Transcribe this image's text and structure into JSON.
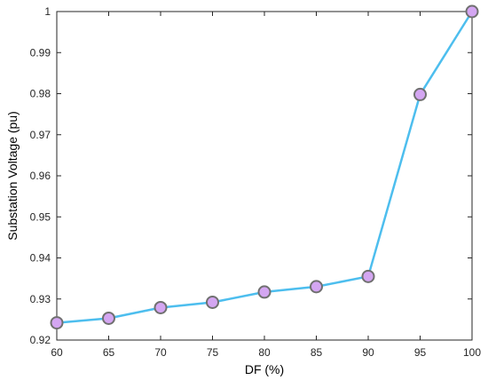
{
  "chart_data": {
    "type": "line",
    "xlabel": "DF (%)",
    "ylabel": "Substation Voltage (pu)",
    "xlim": [
      60,
      100
    ],
    "ylim": [
      0.92,
      1.0
    ],
    "x_ticks": [
      "60",
      "65",
      "70",
      "75",
      "80",
      "85",
      "90",
      "95",
      "100"
    ],
    "y_ticks": [
      "0.92",
      "0.93",
      "0.94",
      "0.95",
      "0.96",
      "0.97",
      "0.98",
      "0.99",
      "1"
    ],
    "grid": false,
    "series": [
      {
        "x": [
          60,
          65,
          70,
          75,
          80,
          85,
          90,
          95,
          100
        ],
        "values": [
          0.9242,
          0.9253,
          0.9279,
          0.9292,
          0.9317,
          0.933,
          0.9355,
          0.9798,
          1.0
        ],
        "line_color": "#4DBEEE",
        "marker_fill": "#D4A6F2",
        "marker_edge": "#707070"
      }
    ]
  }
}
